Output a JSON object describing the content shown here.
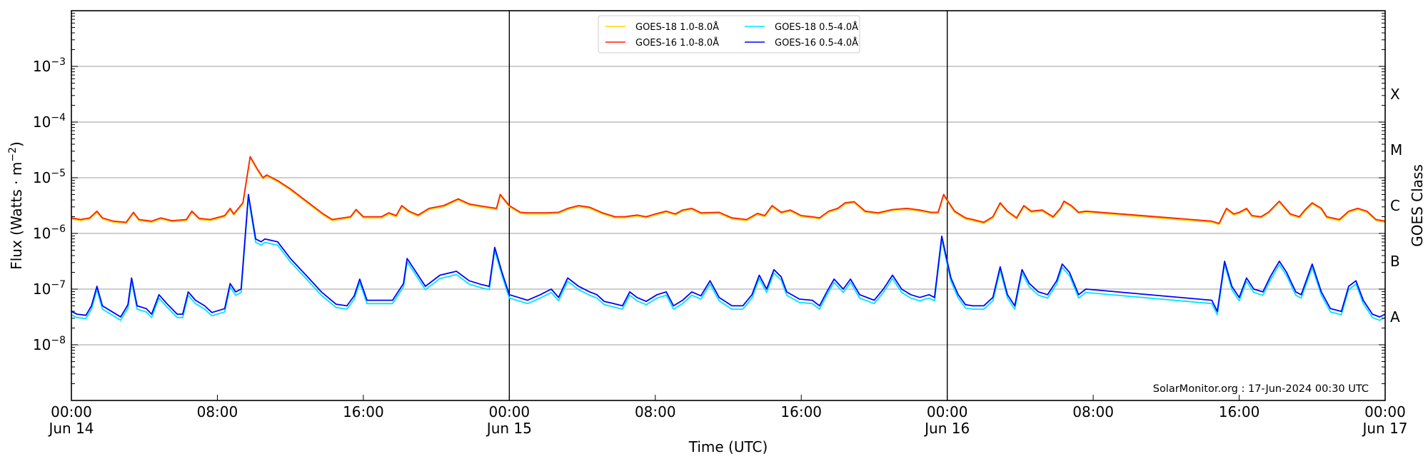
{
  "chart_data": {
    "type": "line",
    "title": "",
    "xlabel": "Time (UTC)",
    "ylabel": "Flux (Watts · m⁻²)",
    "ylabel_right": "GOES Class",
    "yscale": "log",
    "ylim": [
      1e-09,
      0.01
    ],
    "xlim_hours": [
      0,
      72
    ],
    "x_ticks": [
      {
        "hour": 0,
        "label": "00:00",
        "sublabel": "Jun 14"
      },
      {
        "hour": 8,
        "label": "08:00",
        "sublabel": ""
      },
      {
        "hour": 16,
        "label": "16:00",
        "sublabel": ""
      },
      {
        "hour": 24,
        "label": "00:00",
        "sublabel": "Jun 15"
      },
      {
        "hour": 32,
        "label": "08:00",
        "sublabel": ""
      },
      {
        "hour": 40,
        "label": "16:00",
        "sublabel": ""
      },
      {
        "hour": 48,
        "label": "00:00",
        "sublabel": "Jun 16"
      },
      {
        "hour": 56,
        "label": "08:00",
        "sublabel": ""
      },
      {
        "hour": 64,
        "label": "16:00",
        "sublabel": ""
      },
      {
        "hour": 72,
        "label": "00:00",
        "sublabel": "Jun 17"
      }
    ],
    "y_ticks": [
      {
        "exp": -3,
        "label": "10",
        "sup": "−3"
      },
      {
        "exp": -4,
        "label": "10",
        "sup": "−4"
      },
      {
        "exp": -5,
        "label": "10",
        "sup": "−5"
      },
      {
        "exp": -6,
        "label": "10",
        "sup": "−6"
      },
      {
        "exp": -7,
        "label": "10",
        "sup": "−7"
      },
      {
        "exp": -8,
        "label": "10",
        "sup": "−8"
      }
    ],
    "goes_classes": [
      {
        "label": "X",
        "exp": -3.5
      },
      {
        "label": "M",
        "exp": -4.5
      },
      {
        "label": "C",
        "exp": -5.5
      },
      {
        "label": "B",
        "exp": -6.5
      },
      {
        "label": "A",
        "exp": -7.5
      }
    ],
    "day_boundaries_hours": [
      24,
      48
    ],
    "grid": true,
    "legend_position": "upper center",
    "annotation": "SolarMonitor.org : 17-Jun-2024 00:30 UTC",
    "data_gap_hours": [
      54.5,
      62.5
    ],
    "series": [
      {
        "name": "GOES-18 1.0-8.0Å",
        "color": "#ffd700",
        "offset": -0.02,
        "base": "GOES-16 1.0-8.0Å"
      },
      {
        "name": "GOES-16 1.0-8.0Å",
        "color": "#ff2000",
        "points": [
          [
            0,
            -5.72
          ],
          [
            0.5,
            -5.75
          ],
          [
            1,
            -5.72
          ],
          [
            1.4,
            -5.6
          ],
          [
            1.7,
            -5.72
          ],
          [
            2.3,
            -5.78
          ],
          [
            3,
            -5.8
          ],
          [
            3.4,
            -5.62
          ],
          [
            3.7,
            -5.75
          ],
          [
            4.4,
            -5.78
          ],
          [
            4.9,
            -5.72
          ],
          [
            5.5,
            -5.77
          ],
          [
            6.3,
            -5.75
          ],
          [
            6.6,
            -5.6
          ],
          [
            7,
            -5.73
          ],
          [
            7.6,
            -5.75
          ],
          [
            8.4,
            -5.68
          ],
          [
            8.7,
            -5.55
          ],
          [
            8.9,
            -5.65
          ],
          [
            9.4,
            -5.45
          ],
          [
            9.8,
            -4.62
          ],
          [
            10.2,
            -4.85
          ],
          [
            10.5,
            -5.0
          ],
          [
            10.7,
            -4.95
          ],
          [
            11.3,
            -5.05
          ],
          [
            12,
            -5.2
          ],
          [
            13,
            -5.45
          ],
          [
            13.8,
            -5.65
          ],
          [
            14.3,
            -5.75
          ],
          [
            15.3,
            -5.7
          ],
          [
            15.6,
            -5.57
          ],
          [
            16,
            -5.7
          ],
          [
            17,
            -5.7
          ],
          [
            17.4,
            -5.63
          ],
          [
            17.8,
            -5.68
          ],
          [
            18.1,
            -5.5
          ],
          [
            18.5,
            -5.6
          ],
          [
            19,
            -5.67
          ],
          [
            19.6,
            -5.55
          ],
          [
            20.4,
            -5.5
          ],
          [
            21.2,
            -5.38
          ],
          [
            21.8,
            -5.47
          ],
          [
            22.7,
            -5.52
          ],
          [
            23.3,
            -5.55
          ],
          [
            23.5,
            -5.3
          ],
          [
            24,
            -5.5
          ],
          [
            24.6,
            -5.62
          ],
          [
            25,
            -5.63
          ],
          [
            26,
            -5.63
          ],
          [
            26.7,
            -5.62
          ],
          [
            27.2,
            -5.55
          ],
          [
            27.8,
            -5.5
          ],
          [
            28.4,
            -5.53
          ],
          [
            29.1,
            -5.63
          ],
          [
            29.8,
            -5.7
          ],
          [
            30.3,
            -5.7
          ],
          [
            31,
            -5.67
          ],
          [
            31.5,
            -5.7
          ],
          [
            32,
            -5.65
          ],
          [
            32.6,
            -5.6
          ],
          [
            33.1,
            -5.65
          ],
          [
            33.5,
            -5.58
          ],
          [
            34,
            -5.55
          ],
          [
            34.5,
            -5.63
          ],
          [
            35.5,
            -5.62
          ],
          [
            36.2,
            -5.72
          ],
          [
            37,
            -5.75
          ],
          [
            37.6,
            -5.64
          ],
          [
            38,
            -5.68
          ],
          [
            38.4,
            -5.5
          ],
          [
            38.9,
            -5.62
          ],
          [
            39.4,
            -5.58
          ],
          [
            40,
            -5.68
          ],
          [
            40.6,
            -5.7
          ],
          [
            41,
            -5.72
          ],
          [
            41.5,
            -5.6
          ],
          [
            42,
            -5.55
          ],
          [
            42.4,
            -5.45
          ],
          [
            42.9,
            -5.43
          ],
          [
            43.5,
            -5.6
          ],
          [
            44.2,
            -5.63
          ],
          [
            45,
            -5.57
          ],
          [
            45.8,
            -5.55
          ],
          [
            46.5,
            -5.58
          ],
          [
            47.1,
            -5.62
          ],
          [
            47.5,
            -5.62
          ],
          [
            47.8,
            -5.3
          ],
          [
            48,
            -5.4
          ],
          [
            48.4,
            -5.6
          ],
          [
            49,
            -5.72
          ],
          [
            49.4,
            -5.75
          ],
          [
            50,
            -5.8
          ],
          [
            50.5,
            -5.7
          ],
          [
            50.9,
            -5.45
          ],
          [
            51.3,
            -5.6
          ],
          [
            51.8,
            -5.72
          ],
          [
            52.2,
            -5.5
          ],
          [
            52.6,
            -5.6
          ],
          [
            53.2,
            -5.58
          ],
          [
            53.8,
            -5.7
          ],
          [
            54.2,
            -5.55
          ],
          [
            54.4,
            -5.42
          ],
          [
            54.8,
            -5.5
          ],
          [
            55.2,
            -5.62
          ],
          [
            55.6,
            -5.6
          ],
          [
            62.5,
            -5.78
          ],
          [
            62.9,
            -5.82
          ],
          [
            63.3,
            -5.55
          ],
          [
            63.7,
            -5.65
          ],
          [
            64,
            -5.62
          ],
          [
            64.4,
            -5.55
          ],
          [
            64.7,
            -5.68
          ],
          [
            65.2,
            -5.7
          ],
          [
            65.6,
            -5.62
          ],
          [
            66.2,
            -5.42
          ],
          [
            66.8,
            -5.65
          ],
          [
            67.3,
            -5.7
          ],
          [
            67.6,
            -5.58
          ],
          [
            68,
            -5.45
          ],
          [
            68.5,
            -5.55
          ],
          [
            68.8,
            -5.7
          ],
          [
            69.5,
            -5.75
          ],
          [
            70,
            -5.6
          ],
          [
            70.5,
            -5.55
          ],
          [
            71,
            -5.6
          ],
          [
            71.5,
            -5.75
          ],
          [
            72,
            -5.78
          ]
        ]
      },
      {
        "name": "GOES-18 0.5-4.0Å",
        "color": "#00e5ff",
        "offset": -0.06,
        "base": "GOES-16 0.5-4.0Å"
      },
      {
        "name": "GOES-16 0.5-4.0Å",
        "color": "#0000ff",
        "points": [
          [
            0,
            -7.4
          ],
          [
            0.3,
            -7.45
          ],
          [
            0.8,
            -7.47
          ],
          [
            1.1,
            -7.3
          ],
          [
            1.4,
            -6.95
          ],
          [
            1.7,
            -7.3
          ],
          [
            2.3,
            -7.42
          ],
          [
            2.7,
            -7.5
          ],
          [
            3.1,
            -7.28
          ],
          [
            3.3,
            -6.8
          ],
          [
            3.6,
            -7.3
          ],
          [
            4.1,
            -7.35
          ],
          [
            4.4,
            -7.45
          ],
          [
            4.8,
            -7.1
          ],
          [
            5.2,
            -7.25
          ],
          [
            5.8,
            -7.45
          ],
          [
            6.1,
            -7.45
          ],
          [
            6.4,
            -7.05
          ],
          [
            6.8,
            -7.2
          ],
          [
            7.3,
            -7.3
          ],
          [
            7.7,
            -7.42
          ],
          [
            8.4,
            -7.35
          ],
          [
            8.7,
            -6.9
          ],
          [
            9,
            -7.05
          ],
          [
            9.3,
            -7.0
          ],
          [
            9.7,
            -5.3
          ],
          [
            10.1,
            -6.1
          ],
          [
            10.4,
            -6.15
          ],
          [
            10.6,
            -6.1
          ],
          [
            11.3,
            -6.15
          ],
          [
            12,
            -6.45
          ],
          [
            13,
            -6.8
          ],
          [
            13.7,
            -7.05
          ],
          [
            14.5,
            -7.27
          ],
          [
            15.1,
            -7.3
          ],
          [
            15.5,
            -7.12
          ],
          [
            15.8,
            -6.82
          ],
          [
            16.2,
            -7.2
          ],
          [
            17.1,
            -7.2
          ],
          [
            17.6,
            -7.2
          ],
          [
            18.2,
            -6.9
          ],
          [
            18.4,
            -6.45
          ],
          [
            18.9,
            -6.7
          ],
          [
            19.4,
            -6.95
          ],
          [
            20.2,
            -6.75
          ],
          [
            21.1,
            -6.68
          ],
          [
            21.8,
            -6.85
          ],
          [
            22.5,
            -6.92
          ],
          [
            22.9,
            -6.95
          ],
          [
            23.2,
            -6.25
          ],
          [
            23.6,
            -6.7
          ],
          [
            24,
            -7.1
          ],
          [
            25,
            -7.2
          ],
          [
            25.7,
            -7.1
          ],
          [
            26.3,
            -7.0
          ],
          [
            26.7,
            -7.15
          ],
          [
            27.2,
            -6.8
          ],
          [
            27.8,
            -6.95
          ],
          [
            28.4,
            -7.05
          ],
          [
            28.8,
            -7.1
          ],
          [
            29.2,
            -7.22
          ],
          [
            29.6,
            -7.25
          ],
          [
            30.2,
            -7.3
          ],
          [
            30.6,
            -7.05
          ],
          [
            31,
            -7.15
          ],
          [
            31.5,
            -7.22
          ],
          [
            32.1,
            -7.1
          ],
          [
            32.6,
            -7.05
          ],
          [
            33,
            -7.3
          ],
          [
            33.5,
            -7.2
          ],
          [
            34,
            -7.05
          ],
          [
            34.5,
            -7.12
          ],
          [
            35,
            -6.85
          ],
          [
            35.5,
            -7.15
          ],
          [
            36.2,
            -7.3
          ],
          [
            36.8,
            -7.3
          ],
          [
            37.3,
            -7.1
          ],
          [
            37.7,
            -6.75
          ],
          [
            38.1,
            -7.0
          ],
          [
            38.5,
            -6.65
          ],
          [
            38.9,
            -6.78
          ],
          [
            39.2,
            -7.05
          ],
          [
            39.9,
            -7.18
          ],
          [
            40.6,
            -7.2
          ],
          [
            41,
            -7.3
          ],
          [
            41.4,
            -7.05
          ],
          [
            41.8,
            -6.82
          ],
          [
            42.3,
            -7.0
          ],
          [
            42.7,
            -6.82
          ],
          [
            43.2,
            -7.1
          ],
          [
            44,
            -7.2
          ],
          [
            44.5,
            -7.0
          ],
          [
            45,
            -6.75
          ],
          [
            45.5,
            -7.0
          ],
          [
            46,
            -7.1
          ],
          [
            46.5,
            -7.15
          ],
          [
            47,
            -7.1
          ],
          [
            47.3,
            -7.15
          ],
          [
            47.7,
            -6.05
          ],
          [
            48.2,
            -6.8
          ],
          [
            48.6,
            -7.1
          ],
          [
            49,
            -7.28
          ],
          [
            49.4,
            -7.3
          ],
          [
            50,
            -7.3
          ],
          [
            50.5,
            -7.15
          ],
          [
            50.9,
            -6.6
          ],
          [
            51.3,
            -7.1
          ],
          [
            51.7,
            -7.3
          ],
          [
            52.1,
            -6.65
          ],
          [
            52.5,
            -6.9
          ],
          [
            53,
            -7.05
          ],
          [
            53.5,
            -7.1
          ],
          [
            54,
            -6.85
          ],
          [
            54.3,
            -6.55
          ],
          [
            54.7,
            -6.7
          ],
          [
            55.2,
            -7.1
          ],
          [
            55.6,
            -7.0
          ],
          [
            62.5,
            -7.2
          ],
          [
            62.8,
            -7.4
          ],
          [
            63.2,
            -6.5
          ],
          [
            63.6,
            -6.95
          ],
          [
            64,
            -7.15
          ],
          [
            64.4,
            -6.8
          ],
          [
            64.8,
            -7.0
          ],
          [
            65.3,
            -7.05
          ],
          [
            65.7,
            -6.78
          ],
          [
            66.2,
            -6.5
          ],
          [
            66.6,
            -6.7
          ],
          [
            67.1,
            -7.05
          ],
          [
            67.4,
            -7.1
          ],
          [
            68,
            -6.55
          ],
          [
            68.5,
            -7.05
          ],
          [
            69,
            -7.35
          ],
          [
            69.6,
            -7.4
          ],
          [
            70,
            -6.95
          ],
          [
            70.4,
            -6.85
          ],
          [
            70.8,
            -7.2
          ],
          [
            71.3,
            -7.45
          ],
          [
            71.7,
            -7.5
          ],
          [
            72,
            -7.45
          ]
        ]
      }
    ]
  }
}
